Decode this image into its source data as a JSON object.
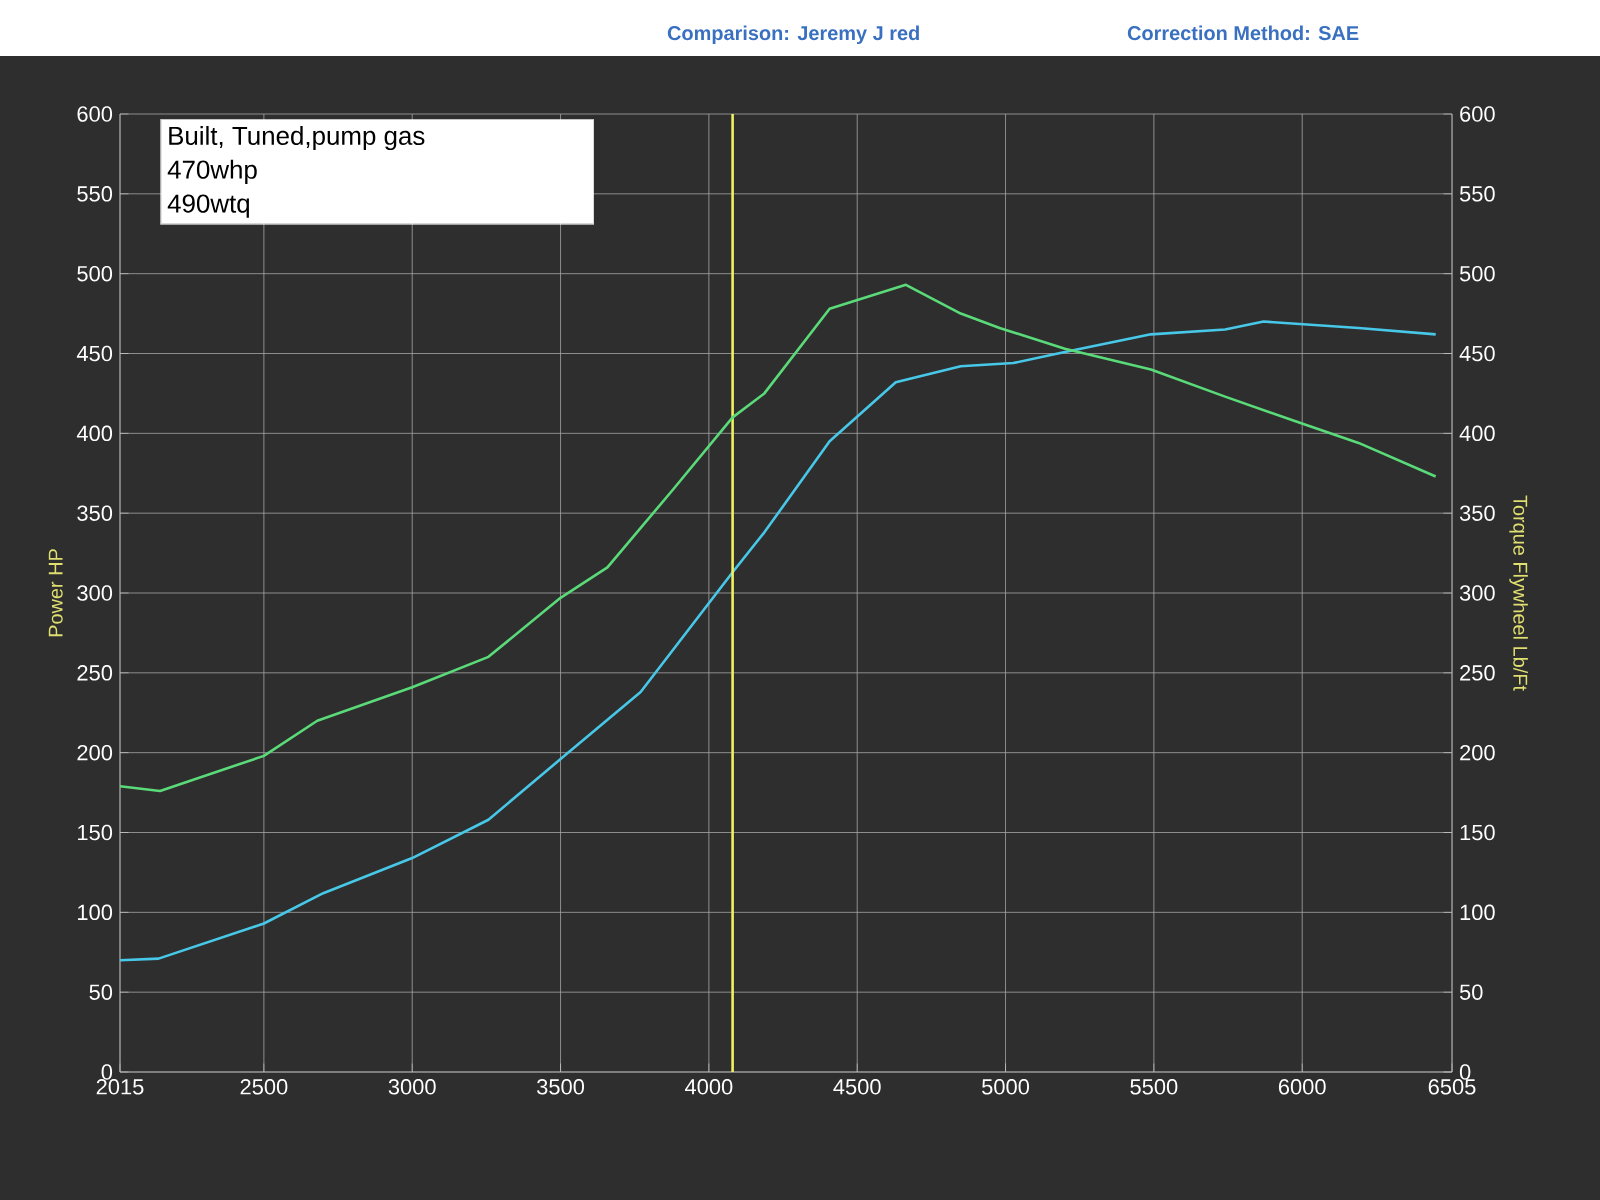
{
  "chart_data": {
    "type": "line",
    "ylabel": "Power HP",
    "y2label": "Torque Flywheel Lb/Ft",
    "annotations": [
      "Comparison: Jeremy J red",
      "Correction Method: SAE",
      "Built, Tuned,pump gas",
      "470whp",
      "490wtq"
    ],
    "xlim": [
      2015,
      6505
    ],
    "xticks": [
      2015,
      2500,
      3000,
      3500,
      4000,
      4500,
      5000,
      5500,
      6000,
      6505
    ],
    "ylim": [
      0,
      600
    ],
    "yticks": [
      0,
      50,
      100,
      150,
      200,
      250,
      300,
      350,
      400,
      450,
      500,
      550,
      600
    ],
    "y2lim": [
      0,
      600
    ],
    "y2ticks": [
      0,
      50,
      100,
      150,
      200,
      250,
      300,
      350,
      400,
      450,
      500,
      550,
      600
    ],
    "grid": true,
    "ref_lines": [
      {
        "axis": "x",
        "value": 4080,
        "color": "#f0f060"
      }
    ],
    "series": [
      {
        "color": "#48c8e8",
        "x": [
          2015,
          2145,
          2500,
          2700,
          3000,
          3257,
          3500,
          3770,
          4080,
          4187,
          4407,
          4630,
          4849,
          5026,
          5200,
          5490,
          5740,
          5870,
          6190,
          6450
        ],
        "values": [
          70,
          71,
          93,
          112,
          134,
          158,
          196,
          238,
          313,
          338,
          395,
          432,
          442,
          444,
          451,
          462,
          465,
          470,
          466,
          462
        ]
      },
      {
        "color": "#5ada78",
        "axis": "y2",
        "x": [
          2015,
          2150,
          2500,
          2680,
          3000,
          3257,
          3500,
          3658,
          3880,
          4080,
          4187,
          4407,
          4664,
          4849,
          4980,
          5200,
          5490,
          5740,
          5970,
          6190,
          6450
        ],
        "values": [
          179,
          176,
          198,
          220,
          241,
          260,
          297,
          316,
          365,
          410,
          425,
          478,
          493,
          475,
          466,
          453,
          440,
          423,
          408,
          394,
          373
        ]
      }
    ]
  }
}
